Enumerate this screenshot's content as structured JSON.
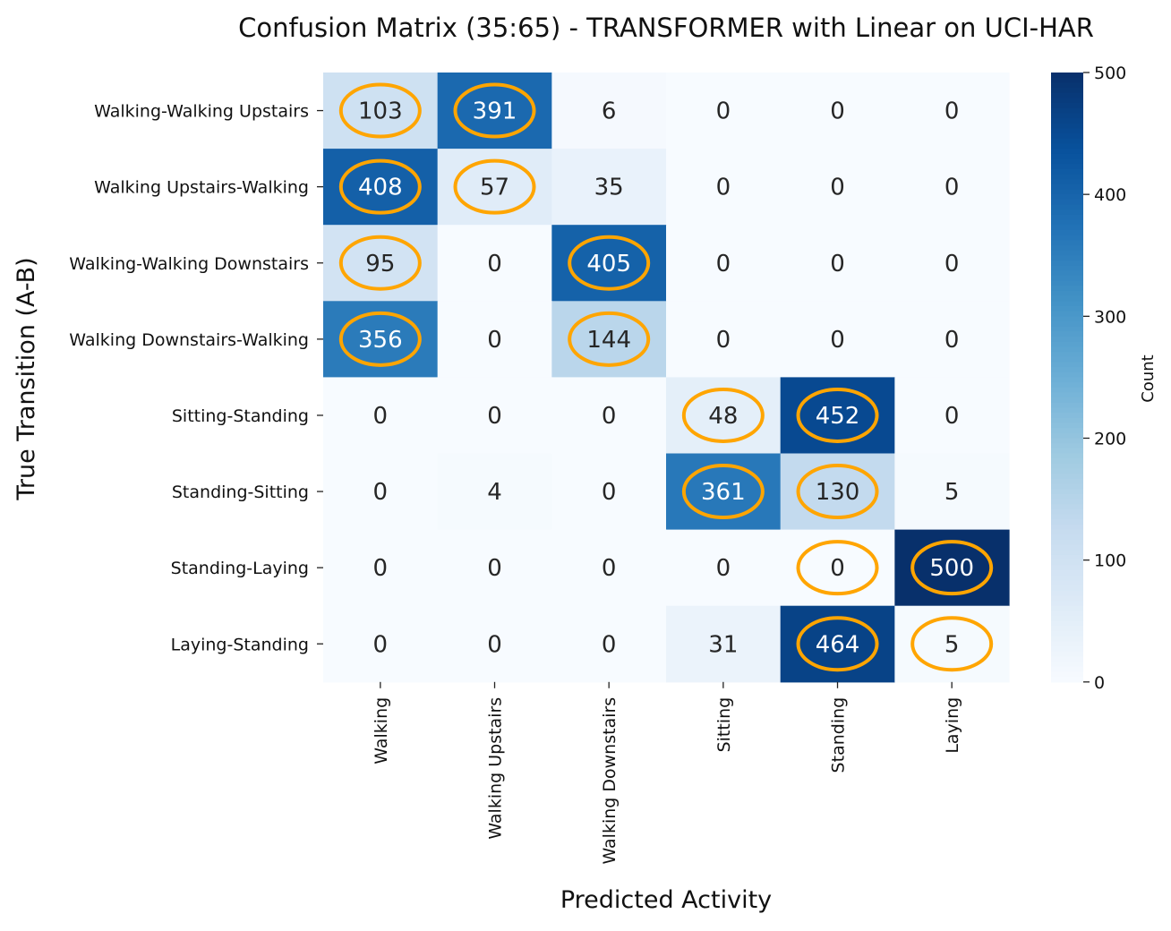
{
  "chart_data": {
    "type": "heatmap",
    "title": "Confusion Matrix (35:65) - TRANSFORMER with Linear on UCI-HAR",
    "xlabel": "Predicted Activity",
    "ylabel": "True Transition (A-B)",
    "x_categories": [
      "Walking",
      "Walking Upstairs",
      "Walking Downstairs",
      "Sitting",
      "Standing",
      "Laying"
    ],
    "y_categories": [
      "Walking-Walking Upstairs",
      "Walking Upstairs-Walking",
      "Walking-Walking Downstairs",
      "Walking Downstairs-Walking",
      "Sitting-Standing",
      "Standing-Sitting",
      "Standing-Laying",
      "Laying-Standing"
    ],
    "values": [
      [
        103,
        391,
        6,
        0,
        0,
        0
      ],
      [
        408,
        57,
        35,
        0,
        0,
        0
      ],
      [
        95,
        0,
        405,
        0,
        0,
        0
      ],
      [
        356,
        0,
        144,
        0,
        0,
        0
      ],
      [
        0,
        0,
        0,
        48,
        452,
        0
      ],
      [
        0,
        4,
        0,
        361,
        130,
        5
      ],
      [
        0,
        0,
        0,
        0,
        0,
        500
      ],
      [
        0,
        0,
        0,
        31,
        464,
        5
      ]
    ],
    "highlighted_cells": [
      [
        0,
        0
      ],
      [
        0,
        1
      ],
      [
        1,
        0
      ],
      [
        1,
        1
      ],
      [
        2,
        0
      ],
      [
        2,
        2
      ],
      [
        3,
        0
      ],
      [
        3,
        2
      ],
      [
        4,
        3
      ],
      [
        4,
        4
      ],
      [
        5,
        3
      ],
      [
        5,
        4
      ],
      [
        6,
        4
      ],
      [
        6,
        5
      ],
      [
        7,
        4
      ],
      [
        7,
        5
      ]
    ],
    "highlight_color": "#FFA500",
    "colormap": "Blues",
    "colorbar": {
      "label": "Count",
      "range": [
        0,
        500
      ],
      "ticks": [
        0,
        100,
        200,
        300,
        400,
        500
      ]
    },
    "grid": false
  }
}
